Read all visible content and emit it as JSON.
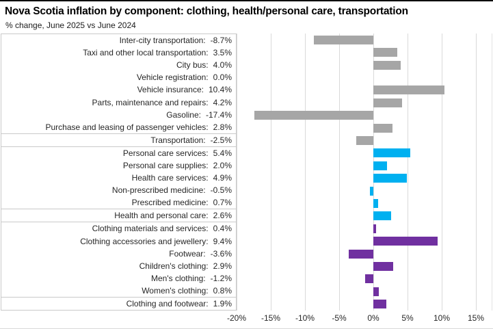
{
  "header": {
    "title": "Nova Scotia inflation by component: clothing, health/personal care, transportation",
    "subtitle": "% change, June 2025 vs June 2024"
  },
  "colors": {
    "transportation": "#a6a6a6",
    "health_personal_care": "#00b0f0",
    "clothing": "#7030a0",
    "gridline": "#d9d9d9",
    "panel_border": "#c9c9c9"
  },
  "chart_data": {
    "type": "bar",
    "orientation": "horizontal",
    "title": "Nova Scotia inflation by component: clothing, health/personal care, transportation",
    "subtitle": "% change, June 2025 vs June 2024",
    "xlabel": "% change, June 2025 vs June 2024",
    "ylabel": "",
    "xlim": [
      -20,
      17.5
    ],
    "grid": true,
    "legend": "none",
    "x_ticks": [
      -20,
      -15,
      -10,
      -5,
      0,
      5,
      10,
      15
    ],
    "x_tick_labels": [
      "-20%",
      "-15%",
      "-10%",
      "-5%",
      "0%",
      "5%",
      "10%",
      "15%"
    ],
    "rows": [
      {
        "label_text": "Inter-city transportation:",
        "value_text": "-8.7%",
        "value": -8.7,
        "group": "transportation",
        "summary": false
      },
      {
        "label_text": "Taxi and other local transportation:",
        "value_text": "3.5%",
        "value": 3.5,
        "group": "transportation",
        "summary": false
      },
      {
        "label_text": "City bus:",
        "value_text": "4.0%",
        "value": 4.0,
        "group": "transportation",
        "summary": false
      },
      {
        "label_text": "Vehicle registration:",
        "value_text": "0.0%",
        "value": 0.0,
        "group": "transportation",
        "summary": false
      },
      {
        "label_text": "Vehicle insurance:",
        "value_text": "10.4%",
        "value": 10.4,
        "group": "transportation",
        "summary": false
      },
      {
        "label_text": "Parts, maintenance and repairs:",
        "value_text": "4.2%",
        "value": 4.2,
        "group": "transportation",
        "summary": false
      },
      {
        "label_text": "Gasoline:",
        "value_text": "-17.4%",
        "value": -17.4,
        "group": "transportation",
        "summary": false
      },
      {
        "label_text": "Purchase and leasing of passenger vehicles:",
        "value_text": "2.8%",
        "value": 2.8,
        "group": "transportation",
        "summary": false
      },
      {
        "label_text": "Transportation:",
        "value_text": "-2.5%",
        "value": -2.5,
        "group": "transportation",
        "summary": true
      },
      {
        "label_text": "Personal care services:",
        "value_text": "5.4%",
        "value": 5.4,
        "group": "health_personal_care",
        "summary": false
      },
      {
        "label_text": "Personal care supplies:",
        "value_text": "2.0%",
        "value": 2.0,
        "group": "health_personal_care",
        "summary": false
      },
      {
        "label_text": "Health care services:",
        "value_text": "4.9%",
        "value": 4.9,
        "group": "health_personal_care",
        "summary": false
      },
      {
        "label_text": "Non-prescribed medicine:",
        "value_text": "-0.5%",
        "value": -0.5,
        "group": "health_personal_care",
        "summary": false
      },
      {
        "label_text": "Prescribed medicine:",
        "value_text": "0.7%",
        "value": 0.7,
        "group": "health_personal_care",
        "summary": false
      },
      {
        "label_text": "Health and personal care:",
        "value_text": "2.6%",
        "value": 2.6,
        "group": "health_personal_care",
        "summary": true
      },
      {
        "label_text": "Clothing materials and services:",
        "value_text": "0.4%",
        "value": 0.4,
        "group": "clothing",
        "summary": false
      },
      {
        "label_text": "Clothing accessories and jewellery:",
        "value_text": "9.4%",
        "value": 9.4,
        "group": "clothing",
        "summary": false
      },
      {
        "label_text": "Footwear:",
        "value_text": "-3.6%",
        "value": -3.6,
        "group": "clothing",
        "summary": false
      },
      {
        "label_text": "Children's clothing:",
        "value_text": "2.9%",
        "value": 2.9,
        "group": "clothing",
        "summary": false
      },
      {
        "label_text": "Men's clothing:",
        "value_text": "-1.2%",
        "value": -1.2,
        "group": "clothing",
        "summary": false
      },
      {
        "label_text": "Women's clothing:",
        "value_text": "0.8%",
        "value": 0.8,
        "group": "clothing",
        "summary": false
      },
      {
        "label_text": "Clothing and footwear:",
        "value_text": "1.9%",
        "value": 1.9,
        "group": "clothing",
        "summary": true
      }
    ]
  }
}
